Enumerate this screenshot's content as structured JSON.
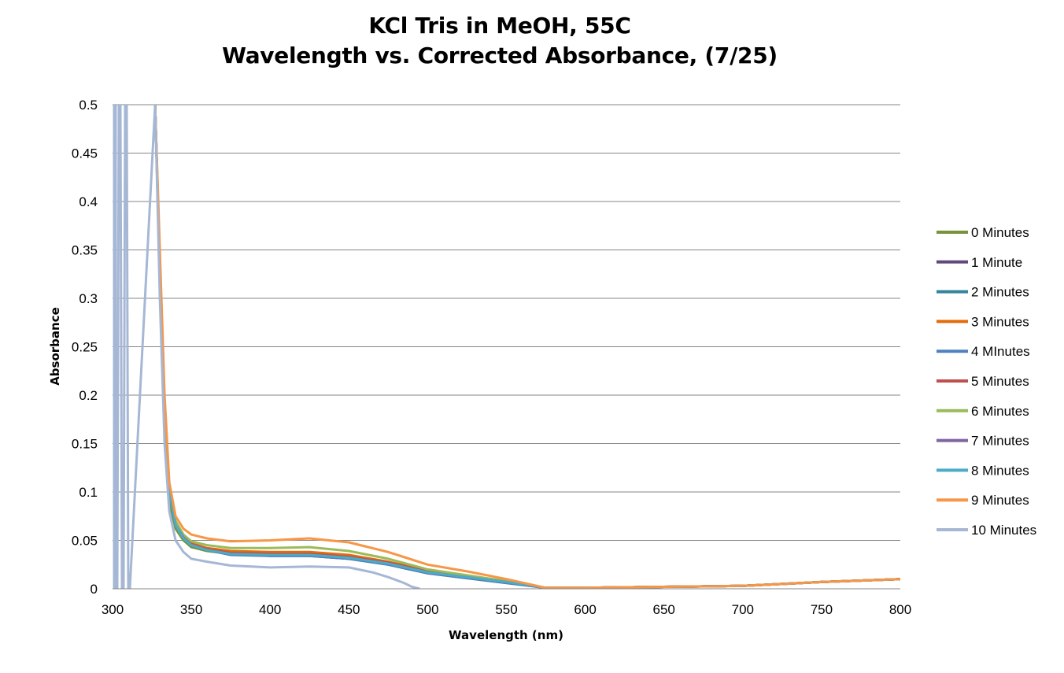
{
  "chart_data": {
    "type": "line",
    "title_lines": [
      "KCl Tris in MeOH, 55C",
      "Wavelength vs. Corrected Absorbance, (7/25)"
    ],
    "xlabel": "Wavelength (nm)",
    "ylabel": "Absorbance",
    "xlim": [
      300,
      800
    ],
    "ylim": [
      0,
      0.5
    ],
    "x_ticks": [
      300,
      350,
      400,
      450,
      500,
      550,
      600,
      650,
      700,
      750,
      800
    ],
    "y_ticks": [
      0,
      0.05,
      0.1,
      0.15,
      0.2,
      0.25,
      0.3,
      0.35,
      0.4,
      0.45,
      0.5
    ],
    "y_tick_labels": [
      "0",
      "0.05",
      "0.1",
      "0.15",
      "0.2",
      "0.25",
      "0.3",
      "0.35",
      "0.4",
      "0.45",
      "0.5"
    ],
    "grid": "horizontal",
    "legend_position": "right",
    "series": [
      {
        "name": "0 Minutes",
        "color": "#77933C",
        "x": [
          327,
          330,
          333,
          336,
          340,
          345,
          350,
          360,
          375,
          400,
          425,
          450,
          475,
          500,
          525,
          550,
          575,
          600,
          650,
          700,
          750,
          800
        ],
        "y": [
          0.5,
          0.32,
          0.17,
          0.09,
          0.062,
          0.05,
          0.043,
          0.039,
          0.036,
          0.036,
          0.035,
          0.032,
          0.026,
          0.017,
          0.012,
          0.007,
          0.001,
          0.001,
          0.002,
          0.003,
          0.007,
          0.01
        ]
      },
      {
        "name": "1 Minute",
        "color": "#604A7B",
        "x": [
          327,
          330,
          333,
          336,
          340,
          345,
          350,
          360,
          375,
          400,
          425,
          450,
          475,
          500,
          525,
          550,
          575,
          600,
          650,
          700,
          750,
          800
        ],
        "y": [
          0.5,
          0.33,
          0.18,
          0.1,
          0.068,
          0.054,
          0.046,
          0.041,
          0.036,
          0.034,
          0.034,
          0.031,
          0.025,
          0.016,
          0.011,
          0.006,
          0.001,
          0.001,
          0.002,
          0.003,
          0.007,
          0.01
        ]
      },
      {
        "name": "2 Minutes",
        "color": "#31859C",
        "x": [
          327,
          330,
          333,
          336,
          340,
          345,
          350,
          360,
          375,
          400,
          425,
          450,
          475,
          500,
          525,
          550,
          575,
          600,
          650,
          700,
          750,
          800
        ],
        "y": [
          0.5,
          0.33,
          0.18,
          0.1,
          0.066,
          0.053,
          0.045,
          0.04,
          0.036,
          0.035,
          0.035,
          0.032,
          0.026,
          0.017,
          0.012,
          0.007,
          0.001,
          0.001,
          0.002,
          0.003,
          0.007,
          0.01
        ]
      },
      {
        "name": "3 Minutes",
        "color": "#E46C0A",
        "x": [
          327,
          330,
          333,
          336,
          340,
          345,
          350,
          360,
          375,
          400,
          425,
          450,
          475,
          500,
          525,
          550,
          575,
          600,
          650,
          700,
          750,
          800
        ],
        "y": [
          0.5,
          0.33,
          0.18,
          0.1,
          0.067,
          0.054,
          0.047,
          0.042,
          0.039,
          0.038,
          0.038,
          0.035,
          0.028,
          0.019,
          0.013,
          0.008,
          0.001,
          0.001,
          0.002,
          0.003,
          0.007,
          0.01
        ]
      },
      {
        "name": "4 MInutes",
        "color": "#4F81BD",
        "x": [
          327,
          330,
          333,
          336,
          340,
          345,
          350,
          360,
          375,
          400,
          425,
          450,
          475,
          500,
          525,
          550,
          575,
          600,
          650,
          700,
          750,
          800
        ],
        "y": [
          0.5,
          0.33,
          0.18,
          0.1,
          0.066,
          0.052,
          0.045,
          0.04,
          0.035,
          0.034,
          0.034,
          0.031,
          0.025,
          0.016,
          0.011,
          0.006,
          0.001,
          0.001,
          0.002,
          0.003,
          0.007,
          0.01
        ]
      },
      {
        "name": "5 Minutes",
        "color": "#C0504D",
        "x": [
          327,
          330,
          333,
          336,
          340,
          345,
          350,
          360,
          375,
          400,
          425,
          450,
          475,
          500,
          525,
          550,
          575,
          600,
          650,
          700,
          750,
          800
        ],
        "y": [
          0.5,
          0.33,
          0.18,
          0.1,
          0.066,
          0.053,
          0.046,
          0.041,
          0.037,
          0.036,
          0.036,
          0.033,
          0.027,
          0.018,
          0.012,
          0.007,
          0.001,
          0.001,
          0.002,
          0.003,
          0.007,
          0.01
        ]
      },
      {
        "name": "6 Minutes",
        "color": "#9BBB59",
        "x": [
          327,
          330,
          333,
          336,
          340,
          345,
          350,
          360,
          375,
          400,
          425,
          450,
          475,
          500,
          525,
          550,
          575,
          600,
          650,
          700,
          750,
          800
        ],
        "y": [
          0.5,
          0.34,
          0.19,
          0.105,
          0.07,
          0.056,
          0.049,
          0.045,
          0.042,
          0.042,
          0.043,
          0.039,
          0.031,
          0.02,
          0.014,
          0.008,
          0.001,
          0.001,
          0.002,
          0.003,
          0.007,
          0.01
        ]
      },
      {
        "name": "7 Minutes",
        "color": "#8064A2",
        "x": [
          327,
          330,
          333,
          336,
          340,
          345,
          350,
          360,
          375,
          400,
          425,
          450,
          475,
          500,
          525,
          550,
          575,
          600,
          650,
          700,
          750,
          800
        ],
        "y": [
          0.5,
          0.33,
          0.18,
          0.1,
          0.066,
          0.053,
          0.045,
          0.04,
          0.036,
          0.035,
          0.035,
          0.032,
          0.026,
          0.017,
          0.012,
          0.007,
          0.001,
          0.001,
          0.002,
          0.003,
          0.007,
          0.01
        ]
      },
      {
        "name": "8 Minutes",
        "color": "#4BACC6",
        "x": [
          327,
          330,
          333,
          336,
          340,
          345,
          350,
          360,
          375,
          400,
          425,
          450,
          475,
          500,
          525,
          550,
          575,
          600,
          650,
          700,
          750,
          800
        ],
        "y": [
          0.5,
          0.33,
          0.18,
          0.1,
          0.066,
          0.052,
          0.045,
          0.04,
          0.036,
          0.035,
          0.035,
          0.032,
          0.026,
          0.017,
          0.012,
          0.007,
          0.001,
          0.001,
          0.002,
          0.003,
          0.007,
          0.01
        ]
      },
      {
        "name": "9 Minutes",
        "color": "#F79646",
        "x": [
          327,
          330,
          333,
          336,
          340,
          345,
          350,
          360,
          375,
          400,
          425,
          450,
          475,
          500,
          525,
          550,
          575,
          600,
          650,
          700,
          750,
          800
        ],
        "y": [
          0.5,
          0.35,
          0.2,
          0.11,
          0.075,
          0.062,
          0.056,
          0.052,
          0.049,
          0.05,
          0.052,
          0.048,
          0.038,
          0.025,
          0.018,
          0.01,
          0.001,
          0.001,
          0.002,
          0.003,
          0.007,
          0.01
        ]
      },
      {
        "name": "10 Minutes",
        "color": "#A6B7D5",
        "x": [
          301,
          301,
          302,
          302,
          303,
          304,
          305,
          306,
          307,
          308,
          309,
          310,
          311,
          327,
          330,
          333,
          336,
          340,
          345,
          350,
          360,
          375,
          400,
          425,
          450,
          465,
          475,
          485,
          490,
          495
        ],
        "y": [
          0,
          0.5,
          0.5,
          0,
          0,
          0.5,
          0.5,
          0,
          0,
          0.5,
          0.5,
          0,
          0,
          0.5,
          0.3,
          0.15,
          0.08,
          0.05,
          0.038,
          0.031,
          0.028,
          0.024,
          0.022,
          0.023,
          0.022,
          0.017,
          0.012,
          0.006,
          0.002,
          0.0
        ]
      }
    ]
  }
}
